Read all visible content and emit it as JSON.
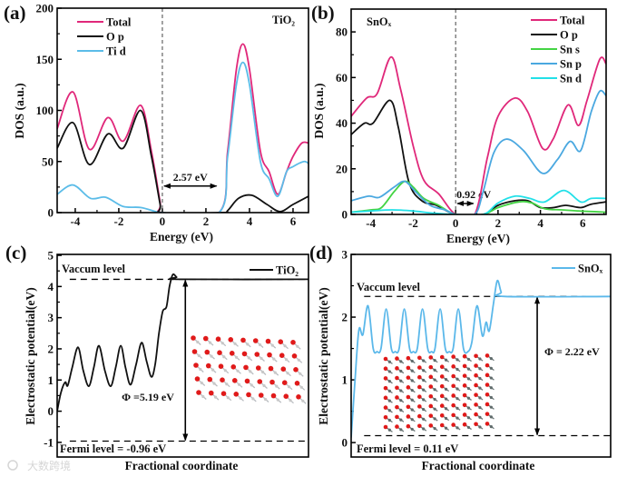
{
  "figure": {
    "watermark": "大数跨境",
    "colors": {
      "total": "#e0287a",
      "op": "#111111",
      "tid": "#5bbce8",
      "sns": "#44d444",
      "snp": "#4aa8e0",
      "snd": "#22e0e8",
      "pot_tio2": "#111111",
      "pot_snox": "#5bb8ea",
      "oxygen": "#e01a1a",
      "metal": "#9aa0a4"
    }
  },
  "chart_data": [
    {
      "panel": "(a)",
      "type": "line",
      "title": "TiO₂",
      "xlabel": "Energy (eV)",
      "ylabel": "DOS (a.u.)",
      "xlim": [
        -4.83,
        6.71
      ],
      "ylim": [
        0,
        200
      ],
      "xticks": [
        -4,
        -2,
        0,
        2,
        4,
        6
      ],
      "yticks": [
        0,
        50,
        100,
        150,
        200
      ],
      "legend_position": "top-left",
      "annotations": {
        "gap": "2.57 eV"
      },
      "gap_ev": 2.57,
      "series": [
        {
          "name": "Total",
          "color_key": "total",
          "x": [
            -4.83,
            -4.1,
            -3.35,
            -2.5,
            -1.8,
            -1.0,
            -0.5,
            -0.1,
            0,
            2.6,
            3.0,
            3.4,
            3.7,
            4.0,
            4.5,
            4.9,
            5.3,
            5.7,
            6.0,
            6.4,
            6.71
          ],
          "y": [
            82,
            118,
            62,
            93,
            70,
            105,
            60,
            10,
            0,
            0,
            60,
            140,
            165,
            140,
            60,
            40,
            18,
            40,
            55,
            68,
            68
          ]
        },
        {
          "name": "O p",
          "color_key": "op",
          "x": [
            -4.83,
            -4.1,
            -3.35,
            -2.5,
            -1.8,
            -1.0,
            -0.5,
            -0.1,
            0,
            2.7,
            3.0,
            3.5,
            4.1,
            4.8,
            5.4,
            6.0,
            6.71
          ],
          "y": [
            63,
            88,
            47,
            77,
            63,
            100,
            55,
            8,
            0,
            0,
            2,
            14,
            17,
            8,
            1,
            8,
            16
          ]
        },
        {
          "name": "Ti d",
          "color_key": "tid",
          "x": [
            -4.83,
            -4.1,
            -3.3,
            -2.6,
            -1.8,
            -1.0,
            -0.3,
            0,
            2.6,
            3.0,
            3.4,
            3.7,
            4.0,
            4.5,
            4.9,
            5.3,
            5.7,
            6.0,
            6.5,
            6.71
          ],
          "y": [
            18,
            27,
            14,
            15,
            6,
            5,
            1,
            0,
            0,
            55,
            125,
            147,
            125,
            50,
            33,
            16,
            40,
            45,
            50,
            48
          ]
        }
      ]
    },
    {
      "panel": "(b)",
      "type": "line",
      "title": "SnOₓ",
      "xlabel": "Energy (eV)",
      "ylabel": "DOS (a.u.)",
      "xlim": [
        -4.93,
        7.1
      ],
      "ylim": [
        0,
        90
      ],
      "xticks": [
        -4,
        -2,
        0,
        2,
        4,
        6
      ],
      "yticks": [
        0,
        20,
        40,
        60,
        80
      ],
      "legend_position": "top-right",
      "annotations": {
        "gap": "0.92 eV"
      },
      "gap_ev": 0.92,
      "series": [
        {
          "name": "Total",
          "color_key": "total",
          "x": [
            -4.93,
            -4.2,
            -3.7,
            -3.05,
            -2.6,
            -2.0,
            -1.5,
            -0.8,
            0,
            0.9,
            1.5,
            2.0,
            2.8,
            3.4,
            4.1,
            4.6,
            5.3,
            5.8,
            6.2,
            6.8,
            7.1
          ],
          "y": [
            43,
            51,
            53,
            69,
            55,
            30,
            15,
            9,
            0,
            0,
            25,
            43,
            51,
            45,
            29,
            33,
            48,
            39,
            50,
            68,
            66
          ]
        },
        {
          "name": "O p",
          "color_key": "op",
          "x": [
            -4.93,
            -4.3,
            -3.9,
            -3.1,
            -2.7,
            -2.2,
            -1.6,
            -0.9,
            0,
            1.3,
            2.0,
            2.8,
            3.4,
            4.0,
            4.6,
            5.2,
            5.9,
            6.4,
            7.1
          ],
          "y": [
            35,
            40,
            40,
            50,
            38,
            14,
            6,
            4,
            0,
            0,
            4,
            6,
            6,
            3,
            3,
            4,
            3,
            4.5,
            5.5
          ]
        },
        {
          "name": "Sn s",
          "color_key": "sns",
          "x": [
            -4.93,
            -4.0,
            -3.5,
            -2.9,
            -2.4,
            -2.0,
            -1.5,
            -0.8,
            0,
            1.3,
            2.0,
            3.0,
            3.6,
            4.2,
            5.0,
            5.8,
            7.1
          ],
          "y": [
            1,
            2,
            3,
            10,
            14.5,
            12,
            7,
            4,
            0,
            0,
            3,
            5.5,
            5,
            2.5,
            2,
            1.5,
            1
          ]
        },
        {
          "name": "Sn p",
          "color_key": "snp",
          "x": [
            -4.93,
            -4.1,
            -3.6,
            -2.9,
            -2.4,
            -1.9,
            -1.2,
            -0.5,
            0,
            0.9,
            1.3,
            1.8,
            2.4,
            3.2,
            4.1,
            4.8,
            5.4,
            5.9,
            6.4,
            6.8,
            7.1
          ],
          "y": [
            6,
            8,
            7.5,
            12,
            14.5,
            10,
            4,
            2,
            0,
            0,
            10,
            27,
            33,
            28,
            18,
            24,
            32,
            28,
            45,
            54,
            52
          ]
        },
        {
          "name": "Sn d",
          "color_key": "snd",
          "x": [
            -4.93,
            -4.0,
            -3.0,
            -2.0,
            -1.0,
            0,
            1.3,
            2.0,
            2.8,
            3.5,
            4.2,
            5.1,
            5.9,
            6.4,
            7.1
          ],
          "y": [
            1,
            1.5,
            2,
            1.5,
            0.5,
            0,
            0,
            5,
            8,
            7,
            5.5,
            10.5,
            5.5,
            7,
            7
          ]
        }
      ]
    },
    {
      "panel": "(c)",
      "type": "line",
      "title": "",
      "xlabel": "Fractional coordinate",
      "ylabel": "Electrostatic potential(eV)",
      "xlim": [
        0,
        1
      ],
      "ylim": [
        -1.47,
        5.03
      ],
      "xticks": [],
      "yticks": [
        -1,
        0,
        1,
        2,
        3,
        4,
        5
      ],
      "legend_position": "top-right",
      "vacuum_level": 4.23,
      "fermi_level": -0.96,
      "work_function": 5.19,
      "annotations": {
        "vacuum": "Vaccum level",
        "fermi": "Fermi level = -0.96 eV",
        "phi": "Φ =5.19 eV"
      },
      "series": [
        {
          "name": "TiO₂",
          "color_key": "pot_tio2",
          "x": [
            0,
            0.015,
            0.032,
            0.042,
            0.06,
            0.083,
            0.104,
            0.126,
            0.146,
            0.166,
            0.19,
            0.213,
            0.233,
            0.253,
            0.272,
            0.292,
            0.314,
            0.336,
            0.356,
            0.375,
            0.39,
            0.405,
            0.42,
            0.435,
            0.447,
            0.46,
            0.475,
            0.49,
            1.0
          ],
          "y": [
            0,
            0.6,
            0.93,
            0.82,
            1.4,
            2.05,
            1.3,
            0.8,
            1.4,
            2.1,
            1.3,
            0.8,
            1.4,
            2.1,
            1.4,
            0.85,
            1.5,
            2.2,
            1.6,
            1.1,
            1.5,
            2.5,
            3.2,
            3.35,
            4.0,
            4.38,
            4.3,
            4.23,
            4.23
          ]
        }
      ]
    },
    {
      "panel": "(d)",
      "type": "line",
      "title": "",
      "xlabel": "Fractional coordinate",
      "ylabel": "Electrostatic potential(eV)",
      "xlim": [
        0,
        1
      ],
      "ylim": [
        -0.23,
        3.0
      ],
      "xticks": [],
      "yticks": [
        0,
        1,
        2,
        3
      ],
      "legend_position": "top-right",
      "vacuum_level": 2.33,
      "fermi_level": 0.11,
      "work_function": 2.22,
      "annotations": {
        "vacuum": "Vaccum level",
        "fermi": "Fermi level = 0.11 eV",
        "phi": "Φ = 2.22 eV"
      },
      "series": [
        {
          "name": "SnOₓ",
          "color_key": "pot_snox",
          "x": [
            0,
            0.015,
            0.03,
            0.045,
            0.065,
            0.085,
            0.1,
            0.115,
            0.135,
            0.155,
            0.17,
            0.185,
            0.205,
            0.225,
            0.24,
            0.255,
            0.275,
            0.295,
            0.31,
            0.323,
            0.343,
            0.363,
            0.378,
            0.393,
            0.413,
            0.433,
            0.45,
            0.465,
            0.485,
            0.506,
            0.52,
            0.532,
            0.548,
            0.563,
            0.578,
            0.593,
            1.0
          ],
          "y": [
            0.08,
            1.0,
            1.8,
            1.72,
            2.18,
            1.5,
            1.45,
            1.5,
            2.13,
            1.5,
            1.45,
            1.5,
            2.13,
            1.5,
            1.45,
            1.5,
            2.13,
            1.5,
            1.45,
            1.5,
            2.13,
            1.5,
            1.45,
            1.5,
            2.13,
            1.5,
            1.45,
            1.6,
            2.18,
            1.7,
            1.92,
            1.78,
            2.2,
            2.58,
            2.4,
            2.33,
            2.33
          ]
        }
      ]
    }
  ]
}
